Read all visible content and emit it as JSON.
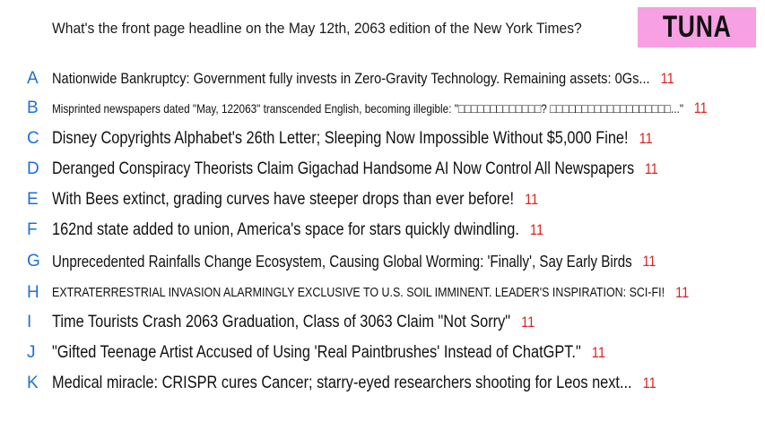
{
  "question": "What's the front page headline on the May 12th, 2063 edition of the New York Times?",
  "tag": "TUNA",
  "answers": [
    {
      "letter": "A",
      "text": "Nationwide Bankruptcy: Government fully invests in Zero-Gravity Technology. Remaining assets: 0Gs...",
      "score": "11"
    },
    {
      "letter": "B",
      "text": "Misprinted newspapers dated \"May, 122063\" transcended English, becoming illegible: \"□□□□□□□□□□□□□? □□□□□□□□□□□□□□□□□□□...\"",
      "score": "11"
    },
    {
      "letter": "C",
      "text": "Disney Copyrights Alphabet's 26th Letter; Sleeping Now Impossible Without $5,000 Fine!",
      "score": "11"
    },
    {
      "letter": "D",
      "text": "Deranged Conspiracy Theorists Claim Gigachad Handsome AI Now Control All Newspapers",
      "score": "11"
    },
    {
      "letter": "E",
      "text": "With Bees extinct, grading curves have steeper drops than ever before!",
      "score": "11"
    },
    {
      "letter": "F",
      "text": "162nd state added to union, America's space for stars quickly dwindling.",
      "score": "11"
    },
    {
      "letter": "G",
      "text": "Unprecedented Rainfalls Change Ecosystem, Causing Global Worming: 'Finally', Say Early Birds",
      "score": "11"
    },
    {
      "letter": "H",
      "text": "EXTRATERRESTRIAL INVASION ALARMINGLY EXCLUSIVE TO U.S. SOIL IMMINENT. LEADER'S INSPIRATION: SCI-FI!",
      "score": "11"
    },
    {
      "letter": "I",
      "text": "Time Tourists Crash 2063 Graduation, Class of 3063 Claim \"Not Sorry\"",
      "score": "11"
    },
    {
      "letter": "J",
      "text": "\"Gifted Teenage Artist Accused of Using 'Real Paintbrushes' Instead of ChatGPT.\"",
      "score": "11"
    },
    {
      "letter": "K",
      "text": "Medical miracle: CRISPR cures Cancer; starry-eyed researchers shooting for Leos next...",
      "score": "11"
    }
  ]
}
